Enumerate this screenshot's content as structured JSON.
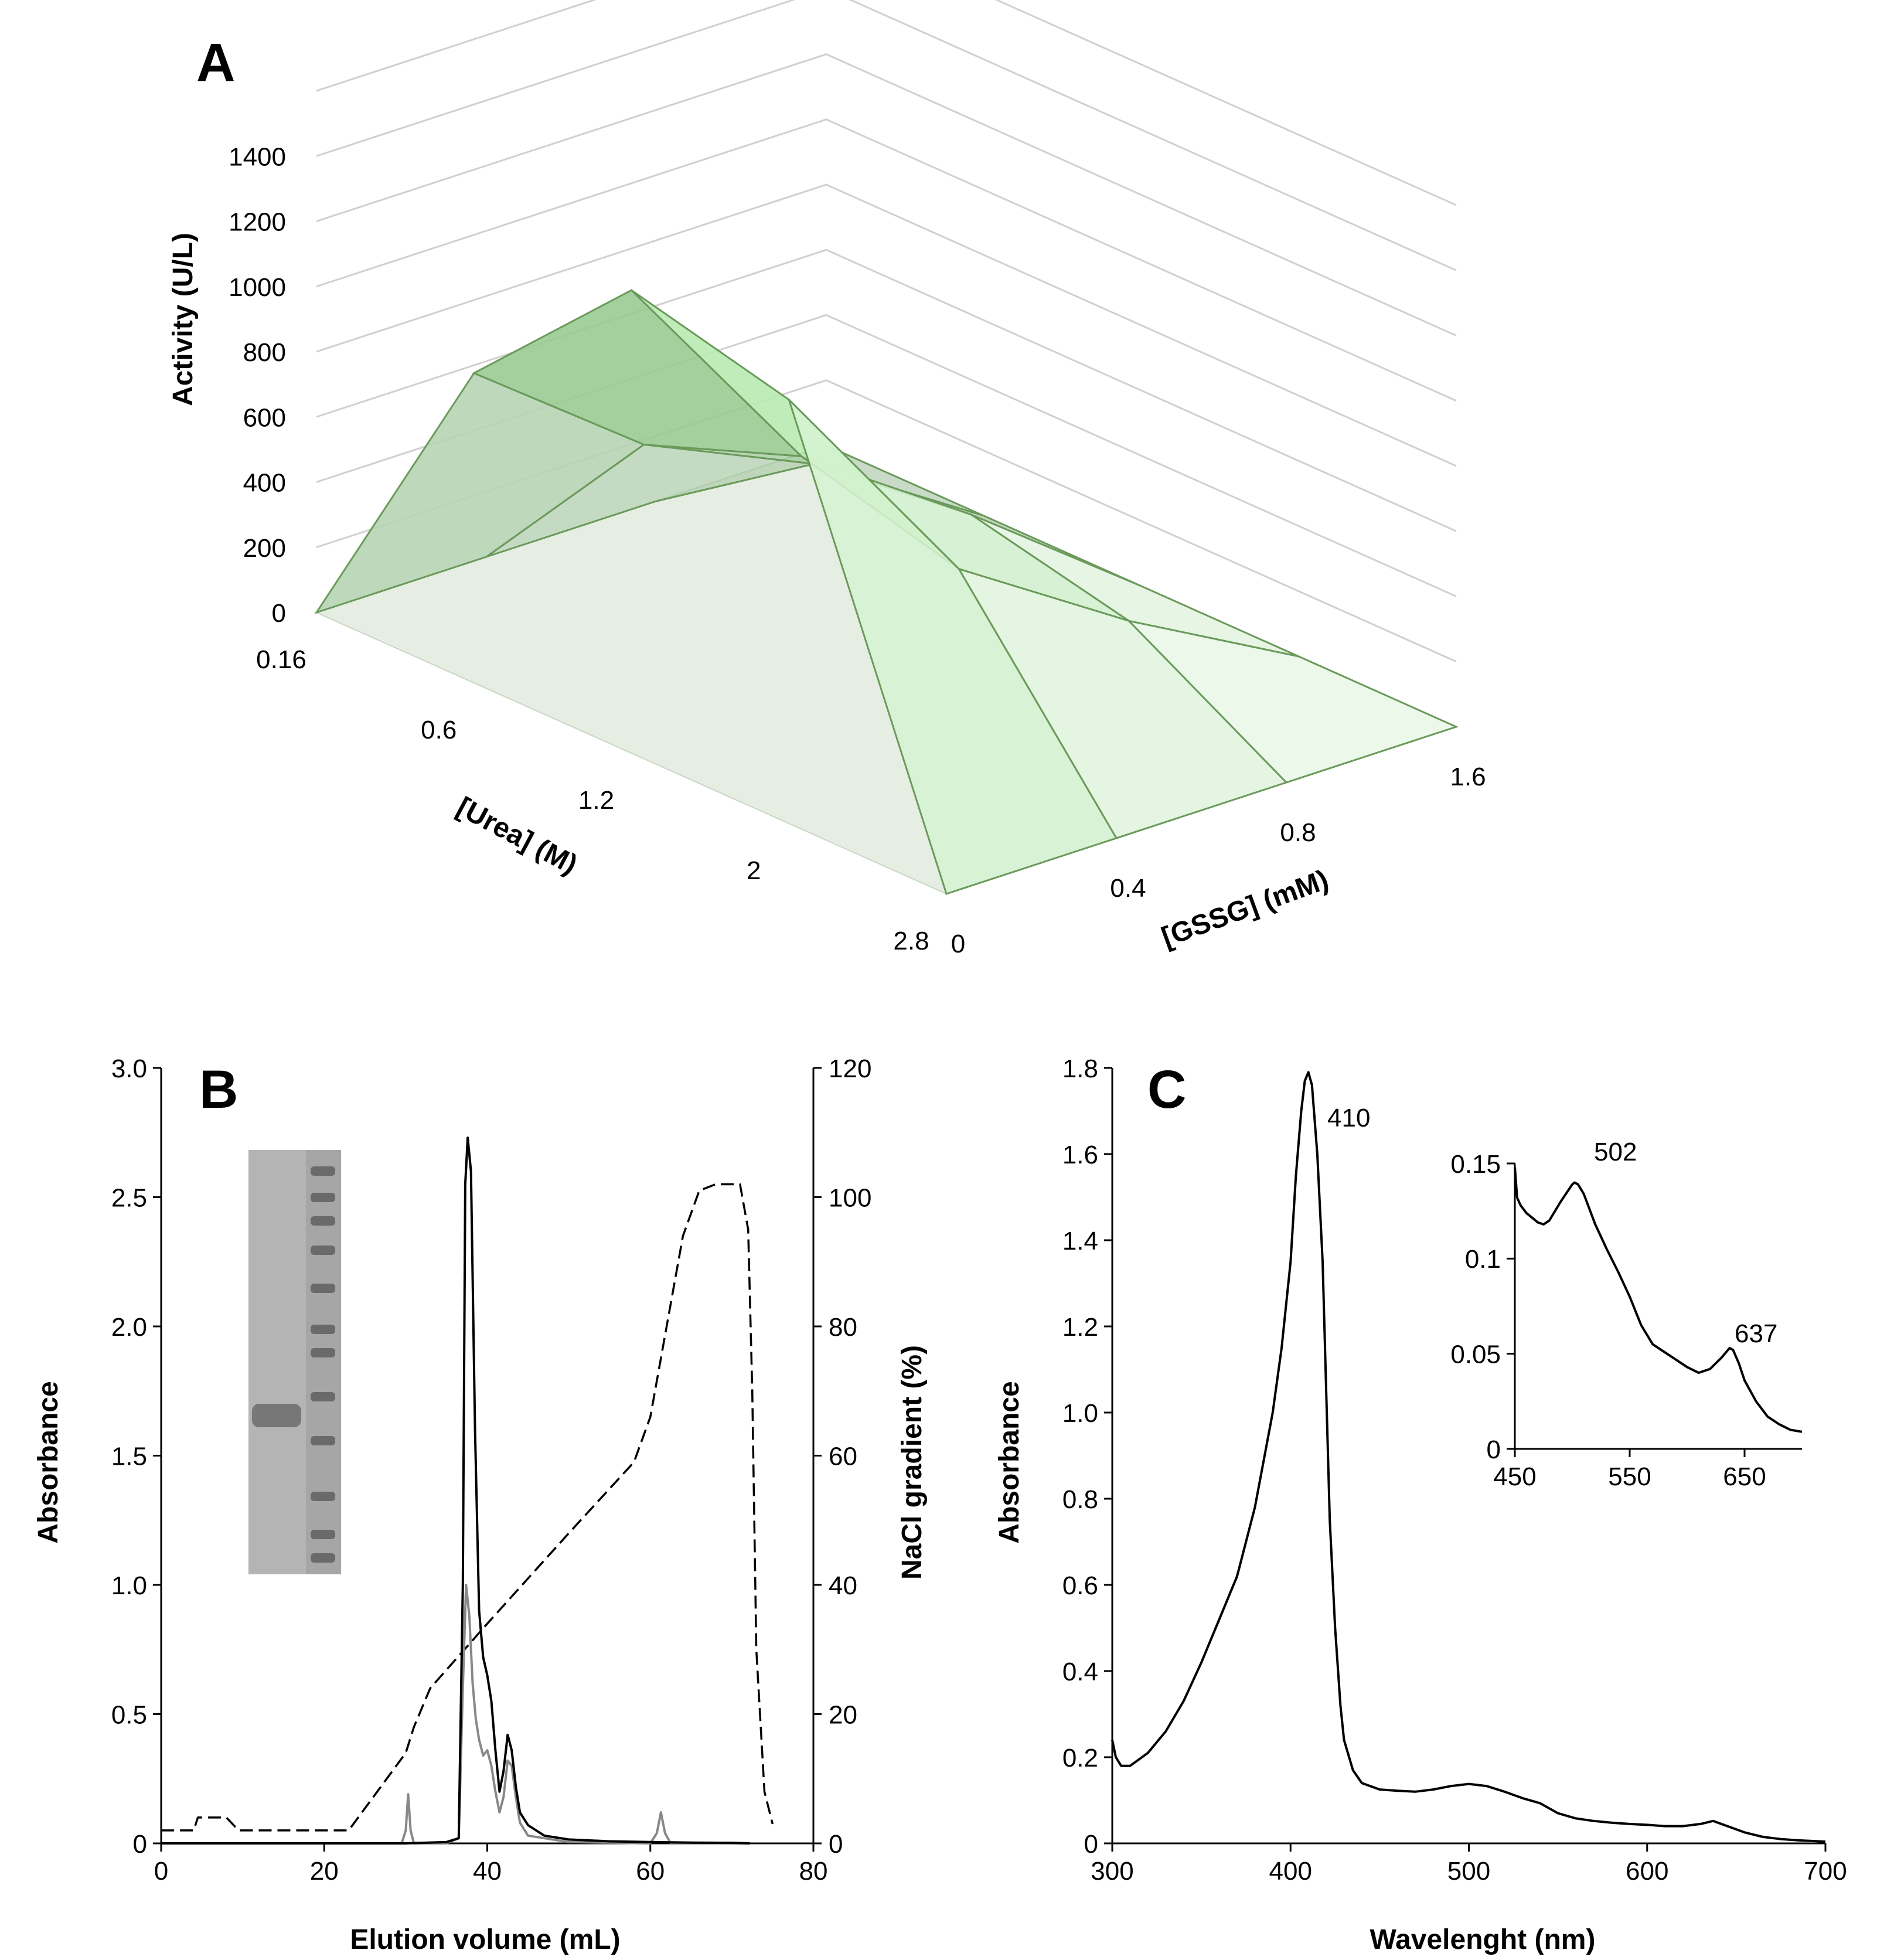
{
  "chart_data": [
    {
      "panel": "A",
      "type": "surface3d",
      "zlabel": "Activity (U/L)",
      "xlabel": "[Urea] (M)",
      "ylabel": "[GSSG] (mM)",
      "z_ticks": [
        "0",
        "200",
        "400",
        "600",
        "800",
        "1000",
        "1200",
        "1400"
      ],
      "zlim": [
        0,
        1600
      ],
      "urea_values": [
        "0.16",
        "0.6",
        "1.2",
        "2",
        "2.8"
      ],
      "gssg_values": [
        "0",
        "0.4",
        "0.8",
        "1.6"
      ],
      "series": [
        {
          "name": "0.16 M urea",
          "values": [
            0,
            0,
            0,
            0
          ]
        },
        {
          "name": "0.6 M urea",
          "values": [
            950,
            560,
            330,
            0
          ]
        },
        {
          "name": "1.2 M urea",
          "values": [
            1420,
            740,
            390,
            0
          ]
        },
        {
          "name": "2 M urea",
          "values": [
            1300,
            610,
            280,
            0
          ]
        },
        {
          "name": "2.8 M urea",
          "values": [
            0,
            0,
            0,
            0
          ]
        }
      ]
    },
    {
      "panel": "B",
      "type": "line",
      "xlabel": "Elution volume (mL)",
      "ylabel": "Absorbance",
      "y2label": "NaCl gradient (%)",
      "xlim": [
        0,
        80
      ],
      "ylim": [
        0,
        3
      ],
      "y2lim": [
        0,
        120
      ],
      "x_ticks": [
        "0",
        "20",
        "40",
        "60",
        "80"
      ],
      "y_ticks": [
        "0",
        "0.5",
        "1.0",
        "1.5",
        "2.0",
        "2.5",
        "3.0"
      ],
      "y2_ticks": [
        "0",
        "20",
        "40",
        "60",
        "80",
        "100",
        "120"
      ],
      "series": [
        {
          "name": "Absorbance (black)",
          "color": "#000000",
          "axis": "left",
          "x": [
            0,
            30,
            35,
            36.5,
            37,
            37.3,
            37.6,
            38,
            38.5,
            39,
            39.5,
            40,
            40.5,
            41,
            41.5,
            42,
            42.5,
            43,
            43.5,
            44,
            45,
            47,
            50,
            55,
            60,
            65,
            70,
            72.2
          ],
          "y": [
            0,
            0,
            0.005,
            0.02,
            1.0,
            2.55,
            2.73,
            2.6,
            1.6,
            0.9,
            0.72,
            0.65,
            0.55,
            0.36,
            0.2,
            0.28,
            0.42,
            0.36,
            0.22,
            0.12,
            0.07,
            0.03,
            0.015,
            0.008,
            0.005,
            0.003,
            0.002,
            0
          ]
        },
        {
          "name": "Absorbance (grey)",
          "color": "#888888",
          "axis": "left",
          "x": [
            0,
            29.5,
            30,
            30.3,
            30.6,
            31,
            35,
            36.5,
            37,
            37.4,
            37.8,
            38.2,
            38.6,
            39,
            39.5,
            40,
            40.5,
            41,
            41.5,
            42,
            42.5,
            43,
            43.5,
            44,
            45,
            50,
            60,
            60.8,
            61.3,
            61.8,
            62.5,
            72.2
          ],
          "y": [
            0,
            0,
            0.05,
            0.19,
            0.05,
            0,
            0,
            0.02,
            0.6,
            1.0,
            0.88,
            0.62,
            0.48,
            0.4,
            0.34,
            0.36,
            0.3,
            0.2,
            0.12,
            0.18,
            0.32,
            0.3,
            0.18,
            0.08,
            0.03,
            0.005,
            0,
            0.04,
            0.12,
            0.04,
            0,
            0
          ]
        },
        {
          "name": "NaCl gradient",
          "color": "#000000",
          "dash": true,
          "axis": "right",
          "x": [
            0,
            4,
            4.5,
            8,
            9.5,
            23,
            30,
            31,
            33,
            40,
            50,
            58,
            60,
            62,
            64,
            66,
            68,
            69,
            71,
            72,
            72.5,
            73,
            74,
            75
          ],
          "y": [
            2,
            2,
            4,
            4,
            2,
            2,
            14,
            18,
            24,
            34,
            48,
            59,
            66,
            80,
            94,
            101,
            102,
            102,
            102,
            95,
            70,
            30,
            8,
            3
          ]
        }
      ]
    },
    {
      "panel": "C",
      "type": "line",
      "xlabel": "Wavelenght (nm)",
      "ylabel": "Absorbance",
      "xlim": [
        300,
        700
      ],
      "ylim": [
        0,
        1.8
      ],
      "x_ticks": [
        "300",
        "400",
        "500",
        "600",
        "700"
      ],
      "y_ticks": [
        "0",
        "0.2",
        "0.4",
        "0.6",
        "0.8",
        "1.0",
        "1.2",
        "1.4",
        "1.6",
        "1.8"
      ],
      "annotations": [
        "410"
      ],
      "series": [
        {
          "name": "Absorbance spectrum",
          "color": "#000000",
          "x": [
            300,
            302,
            305,
            310,
            320,
            330,
            340,
            350,
            360,
            370,
            380,
            390,
            395,
            400,
            403,
            406,
            408,
            410,
            412,
            415,
            418,
            420,
            422,
            425,
            428,
            430,
            435,
            440,
            450,
            460,
            470,
            480,
            490,
            500,
            510,
            520,
            530,
            540,
            550,
            560,
            570,
            580,
            590,
            600,
            610,
            620,
            630,
            637,
            645,
            655,
            665,
            675,
            685,
            695,
            700
          ],
          "y": [
            0.24,
            0.2,
            0.18,
            0.18,
            0.21,
            0.26,
            0.33,
            0.42,
            0.52,
            0.62,
            0.78,
            1.0,
            1.15,
            1.35,
            1.55,
            1.7,
            1.77,
            1.79,
            1.76,
            1.6,
            1.35,
            1.05,
            0.75,
            0.5,
            0.32,
            0.24,
            0.17,
            0.14,
            0.125,
            0.122,
            0.12,
            0.125,
            0.133,
            0.138,
            0.133,
            0.12,
            0.105,
            0.093,
            0.07,
            0.058,
            0.052,
            0.048,
            0.045,
            0.043,
            0.04,
            0.04,
            0.045,
            0.052,
            0.04,
            0.025,
            0.015,
            0.01,
            0.007,
            0.005,
            0.004
          ]
        }
      ]
    },
    {
      "panel": "C-inset",
      "type": "line",
      "xlim": [
        450,
        700
      ],
      "ylim": [
        0,
        0.15
      ],
      "x_ticks": [
        "450",
        "550",
        "650"
      ],
      "y_ticks": [
        "0",
        "0.05",
        "0.1",
        "0.15"
      ],
      "annotations": [
        "502",
        "637"
      ],
      "series": [
        {
          "name": "Inset spectrum",
          "color": "#000000",
          "x": [
            450,
            452,
            455,
            460,
            470,
            475,
            480,
            490,
            500,
            502,
            505,
            510,
            520,
            530,
            540,
            550,
            560,
            570,
            580,
            590,
            600,
            610,
            620,
            630,
            637,
            640,
            645,
            650,
            660,
            670,
            680,
            690,
            700
          ],
          "y": [
            0.148,
            0.132,
            0.128,
            0.124,
            0.119,
            0.118,
            0.12,
            0.13,
            0.139,
            0.14,
            0.139,
            0.134,
            0.118,
            0.105,
            0.093,
            0.08,
            0.065,
            0.055,
            0.051,
            0.047,
            0.043,
            0.04,
            0.042,
            0.048,
            0.053,
            0.052,
            0.045,
            0.036,
            0.025,
            0.017,
            0.013,
            0.01,
            0.009
          ]
        }
      ]
    }
  ],
  "panels": {
    "A": {
      "letter": "A"
    },
    "B": {
      "letter": "B"
    },
    "C": {
      "letter": "C"
    }
  }
}
